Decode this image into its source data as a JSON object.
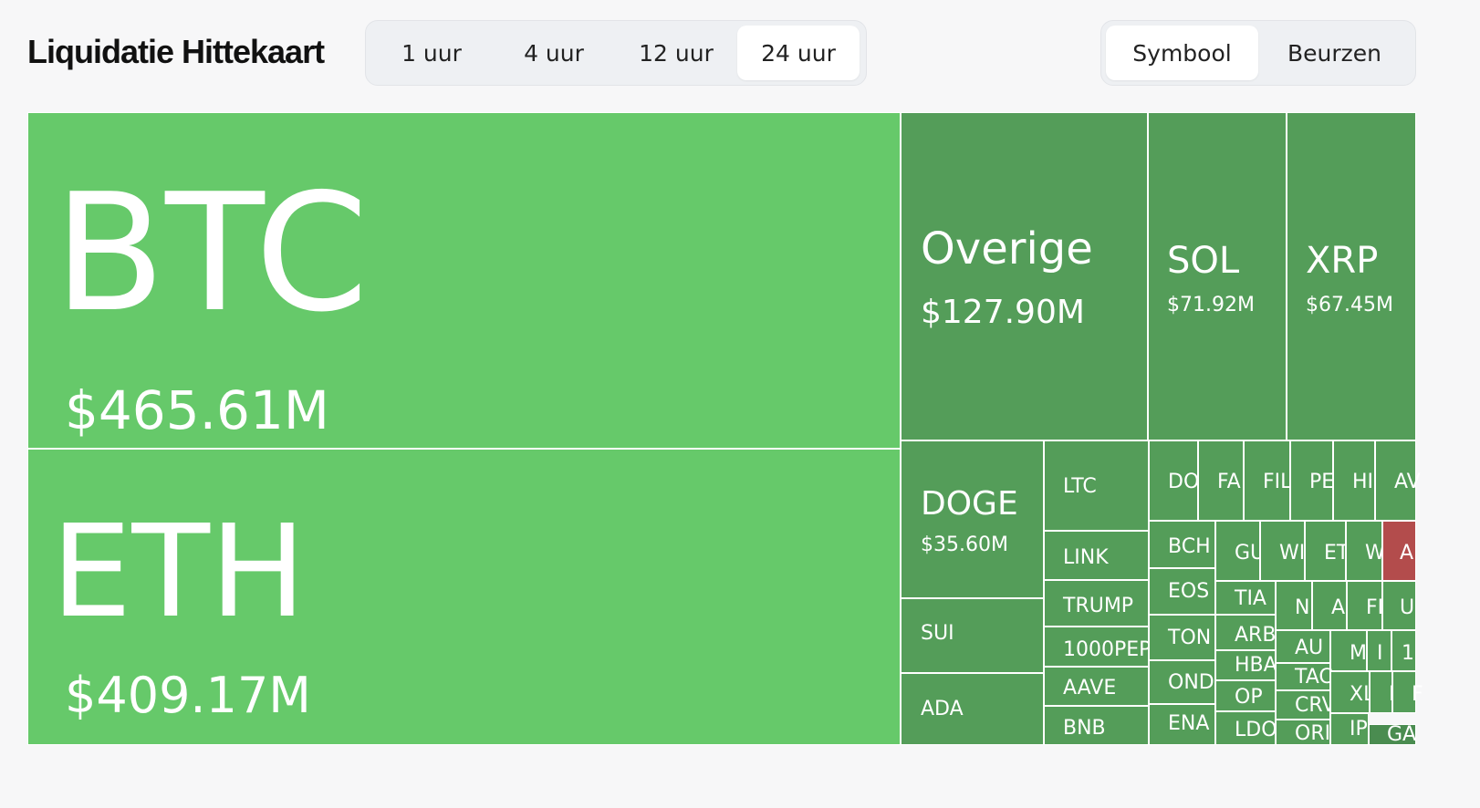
{
  "header": {
    "title": "Liquidatie Hittekaart",
    "timeframes": [
      "1 uur",
      "4 uur",
      "12 uur",
      "24 uur"
    ],
    "active_timeframe": "24 uur",
    "view_modes": [
      "Symbool",
      "Beurzen"
    ],
    "active_view_mode": "Symbool"
  },
  "colors": {
    "top_green": "#66c96a",
    "green": "#549d59",
    "dark_green": "#4a8c50",
    "red": "#b34c4c",
    "border": "#ffffff"
  },
  "chart_data": {
    "type": "treemap",
    "title": "Liquidatie Hittekaart",
    "unit": "USD",
    "items": [
      {
        "symbol": "BTC",
        "value_label": "$465.61M",
        "value_musd": 465.61
      },
      {
        "symbol": "ETH",
        "value_label": "$409.17M",
        "value_musd": 409.17
      },
      {
        "symbol": "Overige",
        "value_label": "$127.90M",
        "value_musd": 127.9
      },
      {
        "symbol": "SOL",
        "value_label": "$71.92M",
        "value_musd": 71.92
      },
      {
        "symbol": "XRP",
        "value_label": "$67.45M",
        "value_musd": 67.45
      },
      {
        "symbol": "DOGE",
        "value_label": "$35.60M",
        "value_musd": 35.6
      },
      {
        "symbol": "SUI"
      },
      {
        "symbol": "ADA"
      },
      {
        "symbol": "LTC"
      },
      {
        "symbol": "LINK"
      },
      {
        "symbol": "TRUMP"
      },
      {
        "symbol": "1000PEP"
      },
      {
        "symbol": "AAVE"
      },
      {
        "symbol": "BNB"
      },
      {
        "symbol": "DO"
      },
      {
        "symbol": "FA"
      },
      {
        "symbol": "FIL"
      },
      {
        "symbol": "PE"
      },
      {
        "symbol": "HI"
      },
      {
        "symbol": "AV"
      },
      {
        "symbol": "BCH"
      },
      {
        "symbol": "GU"
      },
      {
        "symbol": "WI"
      },
      {
        "symbol": "ET"
      },
      {
        "symbol": "W"
      },
      {
        "symbol": "A"
      },
      {
        "symbol": "EOS"
      },
      {
        "symbol": "TIA"
      },
      {
        "symbol": "NI"
      },
      {
        "symbol": "A"
      },
      {
        "symbol": "FI"
      },
      {
        "symbol": "U"
      },
      {
        "symbol": "TON"
      },
      {
        "symbol": "ARB"
      },
      {
        "symbol": "AU"
      },
      {
        "symbol": "M"
      },
      {
        "symbol": "I"
      },
      {
        "symbol": "1"
      },
      {
        "symbol": "HBA"
      },
      {
        "symbol": "TAC"
      },
      {
        "symbol": "OND"
      },
      {
        "symbol": "OP"
      },
      {
        "symbol": "CRV"
      },
      {
        "symbol": "XL"
      },
      {
        "symbol": "N"
      },
      {
        "symbol": "F"
      },
      {
        "symbol": "ENA"
      },
      {
        "symbol": "LDO"
      },
      {
        "symbol": "ORI"
      },
      {
        "symbol": "IP"
      },
      {
        "symbol": "GA"
      }
    ]
  }
}
